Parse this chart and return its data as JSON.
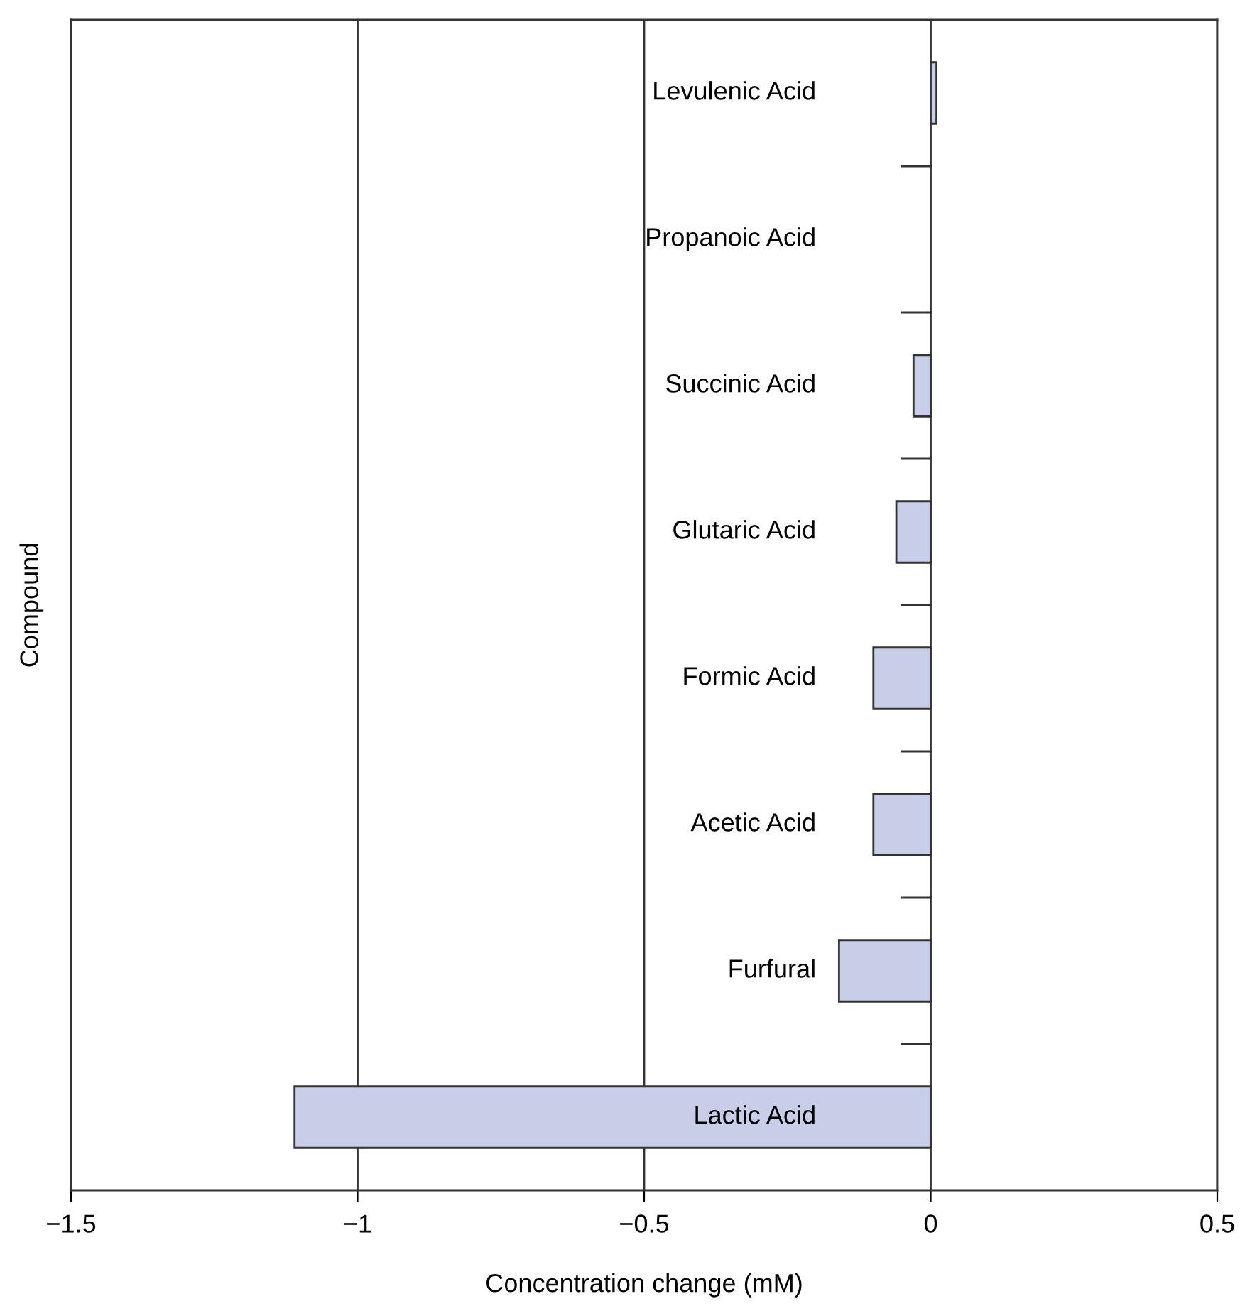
{
  "chart_data": {
    "type": "bar",
    "orientation": "horizontal",
    "xlabel": "Concentration change (mM)",
    "ylabel": "Compound",
    "categories": [
      "Levulenic Acid",
      "Propanoic Acid",
      "Succinic Acid",
      "Glutaric Acid",
      "Formic Acid",
      "Acetic Acid",
      "Furfural",
      "Lactic Acid"
    ],
    "values": [
      0.01,
      0,
      -0.03,
      -0.06,
      -0.1,
      -0.1,
      -0.16,
      -1.11
    ],
    "color": "#c8cde8",
    "xlim": [
      -1.5,
      0.5
    ],
    "xticks": [
      {
        "value": -1.5,
        "label": "−1.5"
      },
      {
        "value": -1,
        "label": "−1"
      },
      {
        "value": -0.5,
        "label": "−0.5"
      },
      0,
      0.5
    ],
    "grid": "x"
  }
}
